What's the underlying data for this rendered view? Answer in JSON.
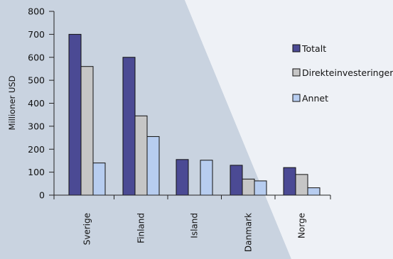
{
  "chart_data": {
    "type": "bar",
    "title": "",
    "xlabel": "",
    "ylabel": "Millioner USD",
    "ylim": [
      0,
      800
    ],
    "yticks": [
      0,
      100,
      200,
      300,
      400,
      500,
      600,
      700,
      800
    ],
    "categories": [
      "Sverige",
      "Finland",
      "Island",
      "Danmark",
      "Norge"
    ],
    "series": [
      {
        "name": "Totalt",
        "color": "#4b4a94",
        "values": [
          700,
          600,
          155,
          130,
          120
        ]
      },
      {
        "name": "Direkteinvesteringer",
        "color": "#c6c6c6",
        "values": [
          560,
          345,
          0,
          70,
          90
        ]
      },
      {
        "name": "Annet",
        "color": "#b7cdf0",
        "values": [
          140,
          255,
          152,
          62,
          32
        ]
      }
    ],
    "grid": false,
    "legend_position": "right",
    "background_colors": [
      "#c9d3e0",
      "#eef1f6"
    ]
  }
}
